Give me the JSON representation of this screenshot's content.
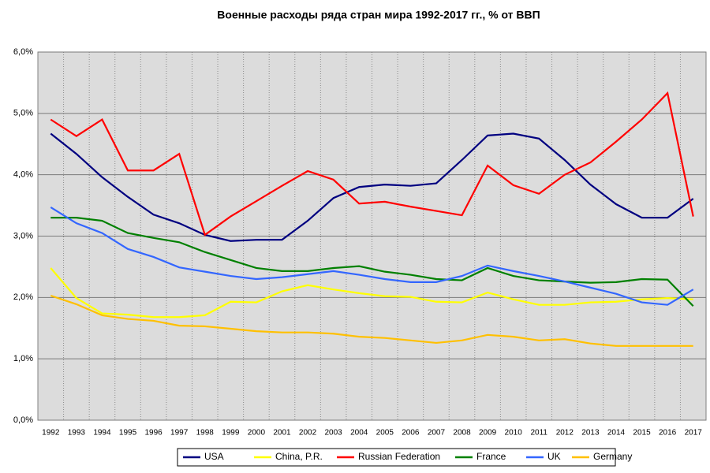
{
  "chart_data": {
    "type": "line",
    "title": "Военные расходы ряда стран мира 1992-2017 гг., % от ВВП",
    "categories": [
      "1992",
      "1993",
      "1994",
      "1995",
      "1996",
      "1997",
      "1998",
      "1999",
      "2000",
      "2001",
      "2002",
      "2003",
      "2004",
      "2005",
      "2006",
      "2007",
      "2008",
      "2009",
      "2010",
      "2011",
      "2012",
      "2013",
      "2014",
      "2015",
      "2016",
      "2017"
    ],
    "series": [
      {
        "name": "USA",
        "color": "#000080",
        "values": [
          4.67,
          4.34,
          3.96,
          3.64,
          3.35,
          3.21,
          3.02,
          2.92,
          2.94,
          2.94,
          3.25,
          3.62,
          3.8,
          3.84,
          3.82,
          3.86,
          4.24,
          4.64,
          4.67,
          4.59,
          4.24,
          3.84,
          3.52,
          3.3,
          3.3,
          3.61
        ]
      },
      {
        "name": "China, P.R.",
        "color": "#ffff00",
        "values": [
          2.48,
          1.99,
          1.74,
          1.72,
          1.68,
          1.68,
          1.71,
          1.93,
          1.92,
          2.1,
          2.2,
          2.13,
          2.07,
          2.02,
          2.01,
          1.93,
          1.92,
          2.08,
          1.97,
          1.88,
          1.88,
          1.92,
          1.93,
          1.97,
          1.99,
          1.97
        ]
      },
      {
        "name": "Russian Federation",
        "color": "#ff0000",
        "values": [
          4.9,
          4.63,
          4.9,
          4.07,
          4.07,
          4.34,
          3.02,
          3.32,
          3.57,
          3.82,
          4.06,
          3.92,
          3.53,
          3.56,
          3.48,
          3.41,
          3.34,
          4.15,
          3.83,
          3.69,
          4.0,
          4.2,
          4.54,
          4.9,
          5.33,
          3.32
        ]
      },
      {
        "name": "France",
        "color": "#008000",
        "values": [
          3.3,
          3.3,
          3.25,
          3.05,
          2.97,
          2.9,
          2.74,
          2.61,
          2.48,
          2.43,
          2.43,
          2.48,
          2.51,
          2.42,
          2.37,
          2.3,
          2.28,
          2.48,
          2.35,
          2.28,
          2.26,
          2.24,
          2.25,
          2.3,
          2.29,
          1.86
        ]
      },
      {
        "name": "UK",
        "color": "#3366ff",
        "values": [
          3.47,
          3.21,
          3.05,
          2.79,
          2.66,
          2.49,
          2.42,
          2.35,
          2.3,
          2.33,
          2.38,
          2.43,
          2.37,
          2.3,
          2.25,
          2.25,
          2.35,
          2.52,
          2.43,
          2.35,
          2.26,
          2.16,
          2.06,
          1.92,
          1.88,
          2.13
        ]
      },
      {
        "name": "Germany",
        "color": "#ffc000",
        "values": [
          2.03,
          1.89,
          1.71,
          1.65,
          1.62,
          1.54,
          1.53,
          1.49,
          1.45,
          1.43,
          1.43,
          1.41,
          1.36,
          1.34,
          1.3,
          1.26,
          1.3,
          1.39,
          1.36,
          1.3,
          1.32,
          1.25,
          1.21,
          1.21,
          1.21,
          1.21
        ]
      }
    ],
    "ylim": [
      0,
      6
    ],
    "yticks": [
      {
        "value": 0,
        "label": "0,0%"
      },
      {
        "value": 1,
        "label": "1,0%"
      },
      {
        "value": 2,
        "label": "2,0%"
      },
      {
        "value": 3,
        "label": "3,0%"
      },
      {
        "value": 4,
        "label": "4,0%"
      },
      {
        "value": 5,
        "label": "5,0%"
      },
      {
        "value": 6,
        "label": "6,0%"
      }
    ],
    "grid": true,
    "legend": "bottom"
  }
}
